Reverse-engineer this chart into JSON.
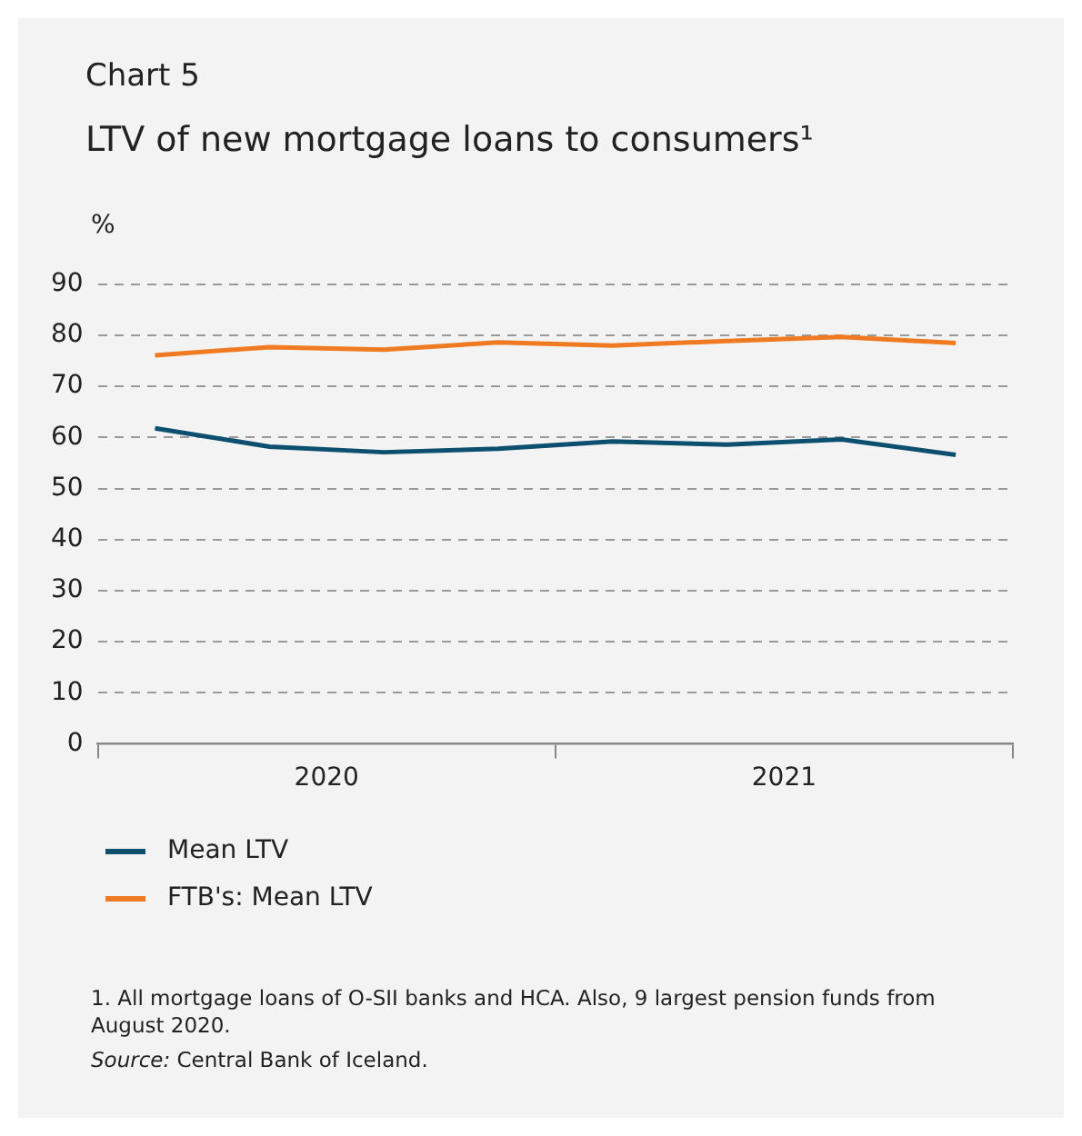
{
  "chart_data": {
    "type": "line",
    "title": "Chart 5",
    "subtitle": "LTV of new mortgage loans to consumers¹",
    "ylabel": "%",
    "x": [
      2020.125,
      2020.375,
      2020.625,
      2020.875,
      2021.125,
      2021.375,
      2021.625,
      2021.875
    ],
    "xlim": [
      2020,
      2022
    ],
    "xticks": [
      {
        "value": 2020,
        "label": null
      },
      {
        "value": 2020.5,
        "label": "2020"
      },
      {
        "value": 2021,
        "label": null
      },
      {
        "value": 2021.5,
        "label": "2021"
      },
      {
        "value": 2022,
        "label": null
      }
    ],
    "ylim": [
      0,
      90
    ],
    "yticks": [
      0,
      10,
      20,
      30,
      40,
      50,
      60,
      70,
      80,
      90
    ],
    "grid": "y",
    "legend": "bottom",
    "marker": "none",
    "line_style": "solid",
    "series": [
      {
        "name": "Mean LTV",
        "color": "#0d4f6e",
        "values": [
          61.8,
          58.2,
          57.1,
          57.8,
          59.2,
          58.6,
          59.6,
          56.6
        ]
      },
      {
        "name": "FTB's: Mean LTV",
        "color": "#f07a21",
        "values": [
          76.1,
          77.7,
          77.2,
          78.6,
          78.0,
          78.9,
          79.7,
          78.5
        ]
      }
    ],
    "annotations": [
      "1. All mortgage loans of O-SII banks and HCA. Also, 9 largest pension funds from August 2020.",
      "Source: Central Bank of Iceland."
    ]
  }
}
